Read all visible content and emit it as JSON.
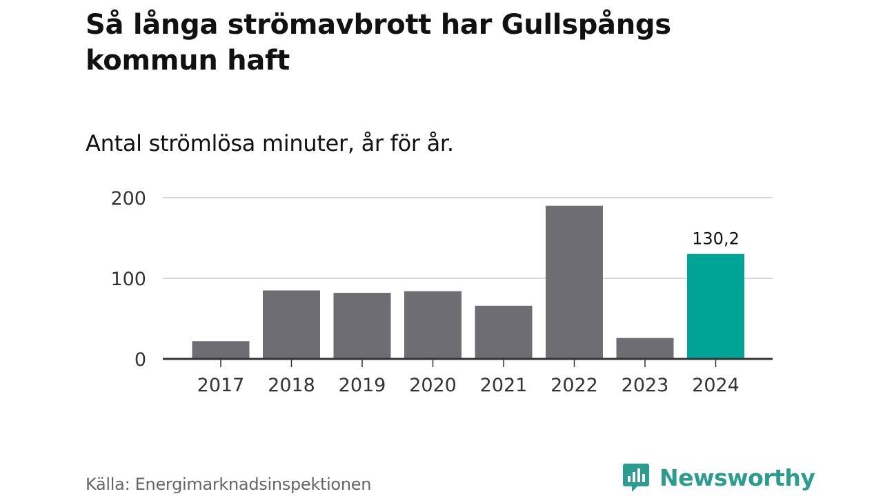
{
  "header": {
    "title": "Så långa strömavbrott har Gullspångs kommun haft",
    "subtitle": "Antal strömlösa minuter, år för år."
  },
  "footer": {
    "source": "Källa: Energimarknadsinspektionen",
    "brand": "Newsworthy"
  },
  "colors": {
    "bar": "#6e6d73",
    "highlight": "#00a496",
    "grid": "#d9d9d9",
    "axis": "#333333",
    "brand": "#2a9d8f"
  },
  "chart_data": {
    "type": "bar",
    "title": "Så långa strömavbrott har Gullspångs kommun haft",
    "subtitle": "Antal strömlösa minuter, år för år.",
    "xlabel": "",
    "ylabel": "",
    "categories": [
      "2017",
      "2018",
      "2019",
      "2020",
      "2021",
      "2022",
      "2023",
      "2024"
    ],
    "values": [
      22,
      85,
      82,
      84,
      66,
      190,
      26,
      130.2
    ],
    "ylim": [
      0,
      200
    ],
    "yticks": [
      0,
      100,
      200
    ],
    "ytick_labels": [
      "0",
      "100",
      "200"
    ],
    "grid": true,
    "highlight_index": 7,
    "data_labels": [
      {
        "index": 7,
        "text": "130,2"
      }
    ]
  }
}
